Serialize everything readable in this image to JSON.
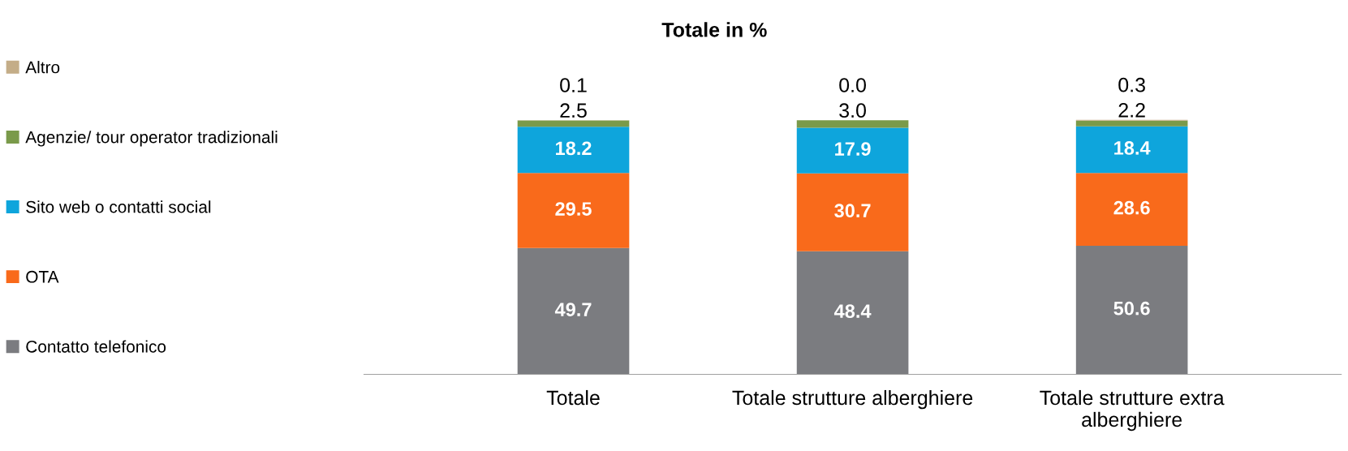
{
  "chart_data": {
    "type": "bar",
    "title": "Totale in %",
    "stacked": true,
    "legend": "left",
    "grid": false,
    "categories": [
      "Totale",
      "Totale strutture alberghiere",
      "Totale strutture extra alberghiere"
    ],
    "series": [
      {
        "name": "Contatto telefonico",
        "color": "#7b7c80",
        "values": [
          49.7,
          48.4,
          50.6
        ],
        "value_labels": [
          "49.7",
          "48.4",
          "50.6"
        ]
      },
      {
        "name": "OTA",
        "color": "#f96a1b",
        "values": [
          29.5,
          30.7,
          28.6
        ],
        "value_labels": [
          "29.5",
          "30.7",
          "28.6"
        ]
      },
      {
        "name": "Sito web o contatti social",
        "color": "#0ea5dc",
        "values": [
          18.2,
          17.9,
          18.4
        ],
        "value_labels": [
          "18.2",
          "17.9",
          "18.4"
        ]
      },
      {
        "name": "Agenzie/ tour operator tradizionali",
        "color": "#7a9a4a",
        "values": [
          2.5,
          3.0,
          2.2
        ],
        "value_labels": [
          "2.5",
          "3.0",
          "2.2"
        ]
      },
      {
        "name": "Altro",
        "color": "#c4ad88",
        "values": [
          0.1,
          0.0,
          0.3
        ],
        "value_labels": [
          "0.1",
          "0.0",
          "0.3"
        ]
      }
    ]
  }
}
